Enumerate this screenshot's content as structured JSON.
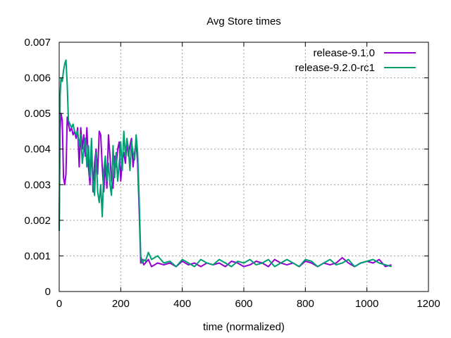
{
  "chart_data": {
    "type": "line",
    "title": "Avg Store times",
    "xlabel": "time (normalized)",
    "ylabel": "",
    "xlim": [
      0,
      1200
    ],
    "ylim": [
      0,
      0.007
    ],
    "xticks": [
      "0",
      "200",
      "400",
      "600",
      "800",
      "1000",
      "1200"
    ],
    "xtick_values": [
      0,
      200,
      400,
      600,
      800,
      1000,
      1200
    ],
    "yticks": [
      "0",
      "0.001",
      "0.002",
      "0.003",
      "0.004",
      "0.005",
      "0.006",
      "0.007"
    ],
    "ytick_values": [
      0,
      0.001,
      0.002,
      0.003,
      0.004,
      0.005,
      0.006,
      0.007
    ],
    "grid": true,
    "legend_position": "top-right",
    "series": [
      {
        "name": "release-9.1.0",
        "color": "#9400d3",
        "x": [
          0,
          3,
          6,
          10,
          14,
          18,
          22,
          26,
          30,
          35,
          40,
          45,
          50,
          55,
          60,
          65,
          70,
          75,
          80,
          85,
          90,
          95,
          100,
          105,
          110,
          115,
          120,
          125,
          130,
          135,
          140,
          145,
          150,
          155,
          160,
          165,
          170,
          175,
          180,
          185,
          190,
          195,
          200,
          205,
          210,
          215,
          220,
          225,
          230,
          235,
          240,
          245,
          250,
          255,
          260,
          265,
          270,
          275,
          280,
          290,
          300,
          320,
          340,
          360,
          380,
          400,
          420,
          440,
          460,
          480,
          500,
          520,
          540,
          560,
          580,
          600,
          620,
          640,
          660,
          680,
          700,
          720,
          740,
          760,
          780,
          800,
          820,
          840,
          860,
          880,
          900,
          920,
          940,
          960,
          980,
          1000,
          1020,
          1040,
          1060,
          1080
        ],
        "y": [
          0.0017,
          0.0045,
          0.005,
          0.0048,
          0.0032,
          0.003,
          0.0033,
          0.0049,
          0.0047,
          0.0045,
          0.0046,
          0.0044,
          0.0045,
          0.0043,
          0.0046,
          0.0035,
          0.0046,
          0.004,
          0.0044,
          0.0038,
          0.0046,
          0.0035,
          0.003,
          0.0041,
          0.0028,
          0.0036,
          0.004,
          0.0033,
          0.0045,
          0.0044,
          0.0035,
          0.0028,
          0.0036,
          0.0029,
          0.0044,
          0.0038,
          0.0031,
          0.0029,
          0.0038,
          0.0035,
          0.004,
          0.0042,
          0.0031,
          0.0037,
          0.0039,
          0.0036,
          0.0042,
          0.0038,
          0.0041,
          0.0043,
          0.0035,
          0.0039,
          0.0042,
          0.0036,
          0.0023,
          0.0008,
          0.0009,
          0.00075,
          0.0008,
          0.0009,
          0.0007,
          0.0008,
          0.00075,
          0.0008,
          0.0007,
          0.00085,
          0.00075,
          0.0008,
          0.0007,
          0.0008,
          0.00075,
          0.0008,
          0.0007,
          0.00085,
          0.0008,
          0.0007,
          0.00075,
          0.00085,
          0.0008,
          0.0007,
          0.0009,
          0.0008,
          0.00075,
          0.0008,
          0.0007,
          0.00085,
          0.0008,
          0.0007,
          0.0008,
          0.00075,
          0.0008,
          0.00095,
          0.0008,
          0.0007,
          0.0008,
          0.00085,
          0.0008,
          0.0009,
          0.0007,
          0.00075
        ]
      },
      {
        "name": "release-9.2.0-rc1",
        "color": "#009e73",
        "x": [
          0,
          3,
          6,
          10,
          14,
          18,
          22,
          26,
          30,
          35,
          40,
          45,
          50,
          55,
          60,
          65,
          70,
          75,
          80,
          85,
          90,
          95,
          100,
          105,
          110,
          115,
          120,
          125,
          130,
          135,
          140,
          145,
          150,
          155,
          160,
          165,
          170,
          175,
          180,
          185,
          190,
          195,
          200,
          205,
          210,
          215,
          220,
          225,
          230,
          235,
          240,
          245,
          250,
          255,
          260,
          265,
          270,
          275,
          280,
          290,
          300,
          320,
          340,
          360,
          380,
          400,
          420,
          440,
          460,
          480,
          500,
          520,
          540,
          560,
          580,
          600,
          620,
          640,
          660,
          680,
          700,
          720,
          740,
          760,
          780,
          800,
          820,
          840,
          860,
          880,
          900,
          920,
          940,
          960,
          980,
          1000,
          1020,
          1040,
          1060,
          1080
        ],
        "y": [
          0.0017,
          0.0055,
          0.006,
          0.0059,
          0.0062,
          0.0064,
          0.0065,
          0.0058,
          0.0048,
          0.0047,
          0.0046,
          0.0047,
          0.0045,
          0.0044,
          0.0045,
          0.0041,
          0.0044,
          0.0036,
          0.004,
          0.0043,
          0.0035,
          0.0041,
          0.0032,
          0.0043,
          0.003,
          0.0027,
          0.0039,
          0.0028,
          0.0025,
          0.003,
          0.0021,
          0.0034,
          0.0038,
          0.0031,
          0.0036,
          0.003,
          0.0027,
          0.0041,
          0.0032,
          0.0039,
          0.0031,
          0.0036,
          0.0042,
          0.0034,
          0.0045,
          0.0038,
          0.0043,
          0.004,
          0.0034,
          0.0042,
          0.0039,
          0.0037,
          0.0044,
          0.0039,
          0.0026,
          0.001,
          0.0008,
          0.0009,
          0.00085,
          0.0011,
          0.0009,
          0.001,
          0.0008,
          0.00085,
          0.0007,
          0.0009,
          0.0008,
          0.0007,
          0.0009,
          0.0008,
          0.00075,
          0.0009,
          0.0008,
          0.0007,
          0.00085,
          0.0008,
          0.0009,
          0.00075,
          0.0008,
          0.0009,
          0.0007,
          0.0008,
          0.0009,
          0.0008,
          0.0007,
          0.0009,
          0.00085,
          0.0007,
          0.0008,
          0.0009,
          0.00075,
          0.0008,
          0.0009,
          0.0007,
          0.0008,
          0.00085,
          0.0009,
          0.0008,
          0.00075,
          0.0007
        ]
      }
    ]
  }
}
